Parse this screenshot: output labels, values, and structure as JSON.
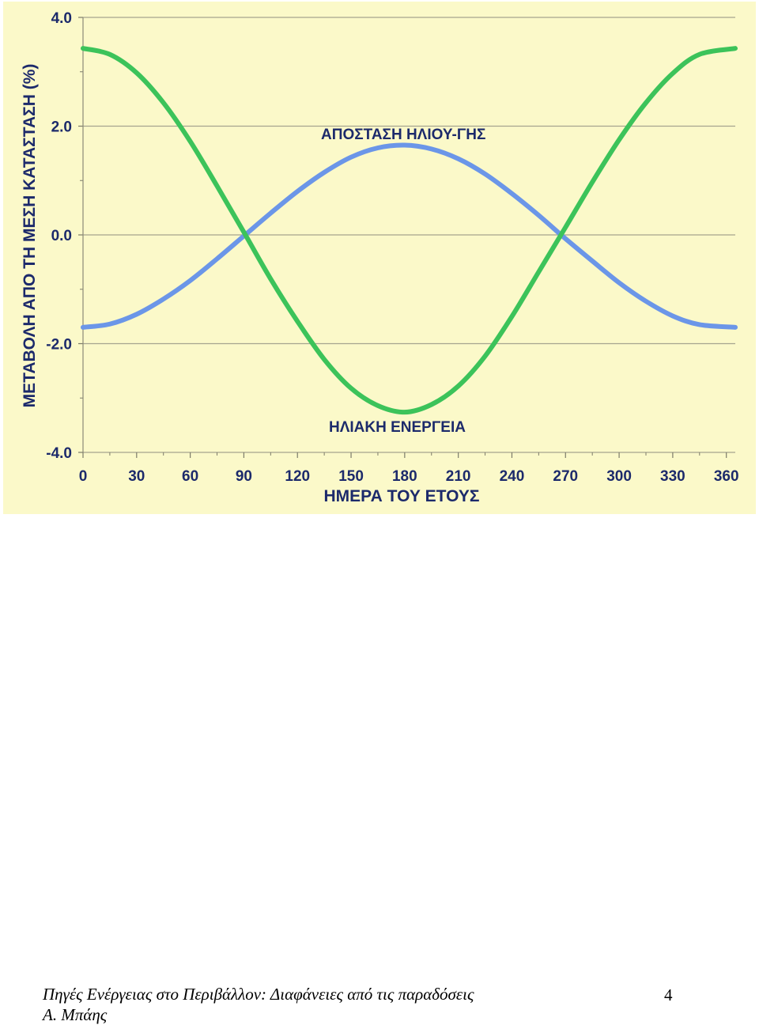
{
  "chart_data": {
    "type": "line",
    "xlabel": "ΗΜΕΡΑ ΤΟΥ ΕΤΟΥΣ",
    "ylabel": "ΜΕΤΑΒΟΛΗ ΑΠΟ ΤΗ ΜΕΣΗ ΚΑΤΑΣΤΑΣΗ (%)",
    "xlim": [
      0,
      365
    ],
    "ylim": [
      -4.0,
      4.0
    ],
    "xticks": [
      "0",
      "30",
      "60",
      "90",
      "120",
      "150",
      "180",
      "210",
      "240",
      "270",
      "300",
      "330",
      "360"
    ],
    "yticks": [
      "4.0",
      "2.0",
      "0.0",
      "-2.0",
      "-4.0"
    ],
    "grid": "horizontal",
    "x": [
      0,
      15,
      30,
      45,
      60,
      75,
      90,
      105,
      120,
      135,
      150,
      165,
      180,
      195,
      210,
      225,
      240,
      255,
      270,
      285,
      300,
      315,
      330,
      345,
      365
    ],
    "series": [
      {
        "name": "ΑΠΟΣΤΑΣΗ ΗΛΙΟΥ-ΓΗΣ",
        "color": "#6b96e8",
        "values": [
          -1.7,
          -1.64,
          -1.46,
          -1.18,
          -0.84,
          -0.44,
          -0.02,
          0.4,
          0.8,
          1.15,
          1.43,
          1.6,
          1.65,
          1.58,
          1.4,
          1.12,
          0.76,
          0.36,
          -0.07,
          -0.48,
          -0.88,
          -1.22,
          -1.49,
          -1.65,
          -1.7
        ]
      },
      {
        "name": "ΗΛΙΑΚΗ ΕΝΕΡΓΕΙΑ",
        "color": "#3cc35a",
        "values": [
          3.43,
          3.32,
          2.98,
          2.43,
          1.72,
          0.9,
          0.05,
          -0.81,
          -1.59,
          -2.29,
          -2.82,
          -3.14,
          -3.26,
          -3.12,
          -2.78,
          -2.23,
          -1.5,
          -0.68,
          0.14,
          0.97,
          1.75,
          2.43,
          2.97,
          3.32,
          3.43
        ]
      }
    ]
  },
  "footer": {
    "caption_line1": "Πηγές Ενέργειας στο Περιβάλλον: Διαφάνειες από τις παραδόσεις",
    "caption_line2": "Α. Μπάης",
    "page_number": "4"
  }
}
